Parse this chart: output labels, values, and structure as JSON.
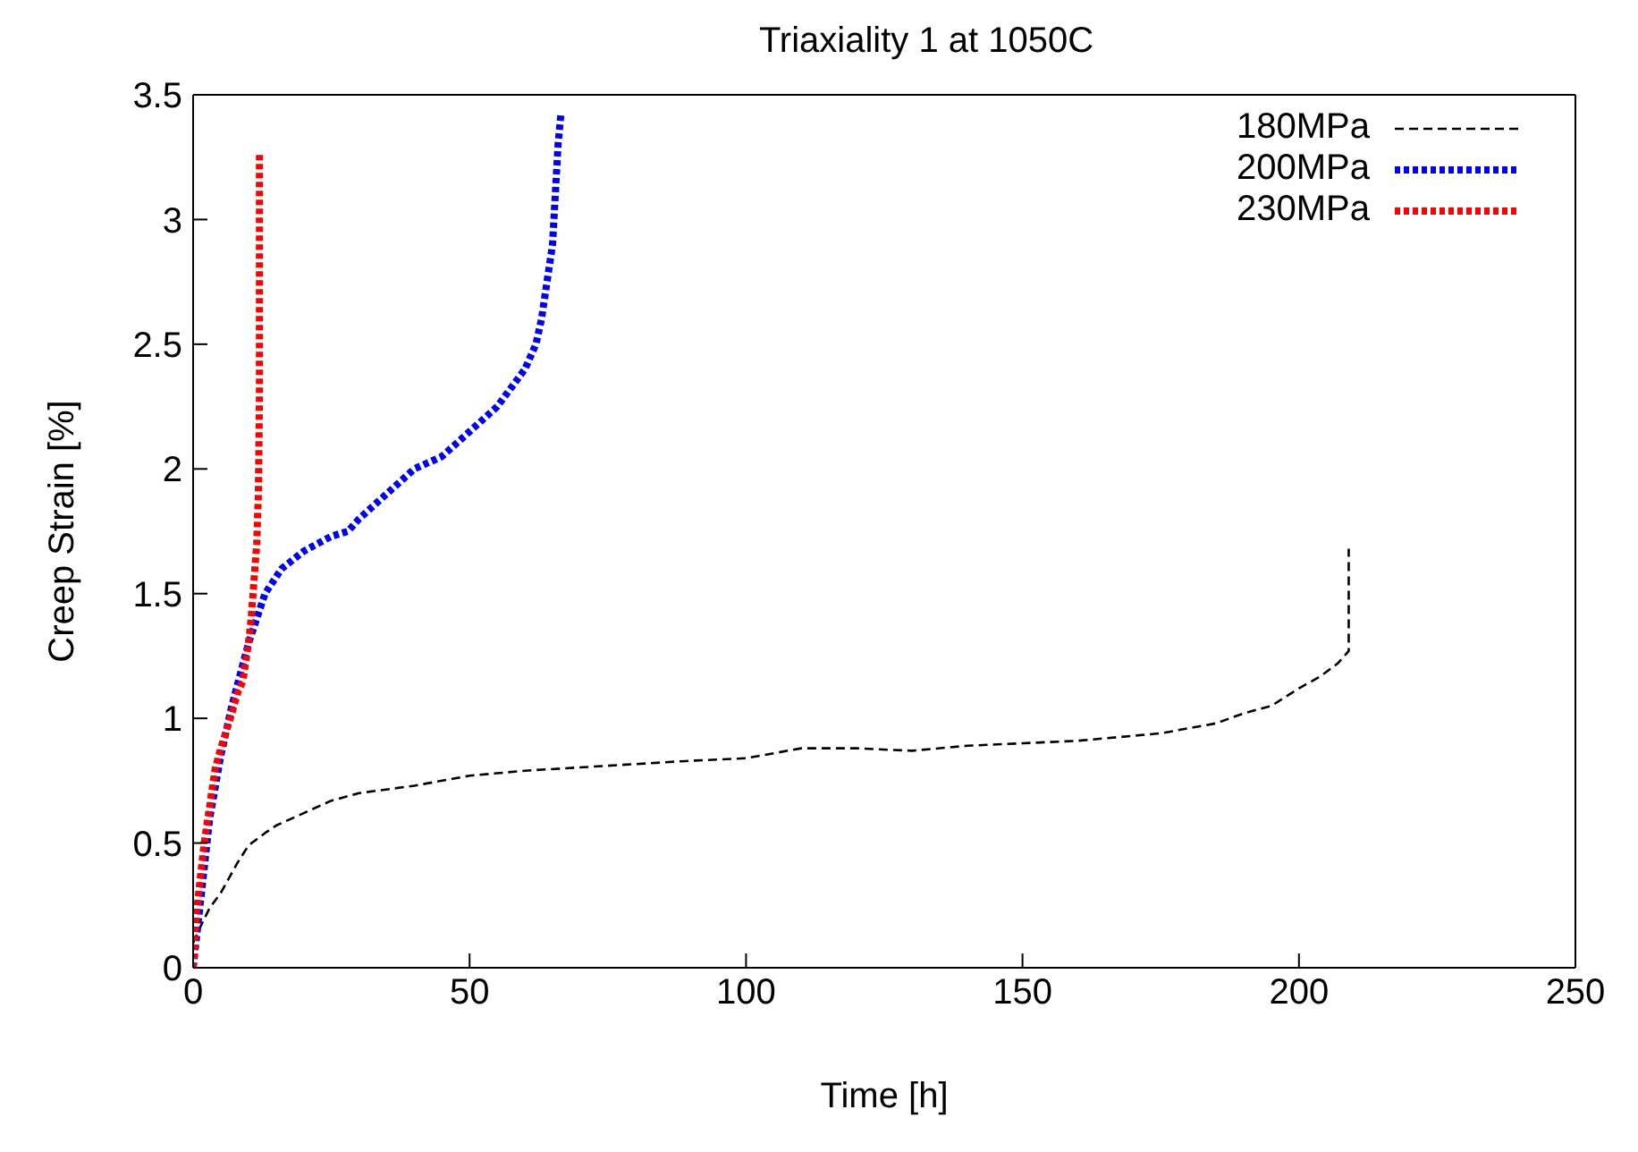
{
  "chart_data": {
    "type": "line",
    "title": "Triaxiality 1 at 1050C",
    "xlabel": "Time [h]",
    "ylabel": "Creep Strain [%]",
    "xlim": [
      0,
      250
    ],
    "xticks": [
      0,
      50,
      100,
      150,
      200,
      250
    ],
    "ylim": [
      0,
      3.5
    ],
    "yticks": [
      0,
      0.5,
      1,
      1.5,
      2,
      2.5,
      3,
      3.5
    ],
    "legend": "top right",
    "marker": "none",
    "series": [
      {
        "name": "180MPa",
        "color": "#000000",
        "line_style": "dashed",
        "x": [
          0,
          1,
          3,
          5,
          8,
          10,
          13,
          15,
          20,
          25,
          30,
          40,
          50,
          60,
          75,
          90,
          100,
          110,
          120,
          130,
          140,
          150,
          160,
          170,
          175,
          180,
          185,
          190,
          195,
          200,
          204,
          207,
          209,
          209
        ],
        "values": [
          0.1,
          0.15,
          0.24,
          0.3,
          0.42,
          0.49,
          0.54,
          0.57,
          0.62,
          0.67,
          0.7,
          0.73,
          0.77,
          0.79,
          0.81,
          0.83,
          0.84,
          0.88,
          0.88,
          0.87,
          0.89,
          0.9,
          0.91,
          0.93,
          0.94,
          0.96,
          0.98,
          1.02,
          1.05,
          1.12,
          1.17,
          1.22,
          1.27,
          1.68
        ]
      },
      {
        "name": "200MPa",
        "color": "#0000ff",
        "line_style": "dotted",
        "x": [
          0,
          1,
          2,
          3,
          5,
          7,
          10,
          13,
          16,
          20,
          25,
          28,
          30,
          35,
          40,
          45,
          50,
          55,
          60,
          62,
          63,
          64,
          65,
          65.5,
          66,
          66.5
        ],
        "values": [
          0,
          0.2,
          0.4,
          0.6,
          0.85,
          1.05,
          1.3,
          1.5,
          1.6,
          1.67,
          1.73,
          1.75,
          1.8,
          1.9,
          2.0,
          2.05,
          2.15,
          2.25,
          2.4,
          2.5,
          2.6,
          2.75,
          2.9,
          3.1,
          3.3,
          3.42
        ]
      },
      {
        "name": "230MPa",
        "color": "#ff0000",
        "line_style": "dotted",
        "x": [
          0,
          0.5,
          1,
          2,
          3,
          4,
          5,
          6,
          7,
          8,
          9,
          10,
          10.5,
          11,
          11.5,
          11.8,
          12,
          12,
          12
        ],
        "values": [
          0,
          0.2,
          0.3,
          0.5,
          0.65,
          0.8,
          0.88,
          0.95,
          1.02,
          1.1,
          1.15,
          1.3,
          1.4,
          1.55,
          1.7,
          1.9,
          2.3,
          2.8,
          3.27
        ]
      }
    ]
  }
}
